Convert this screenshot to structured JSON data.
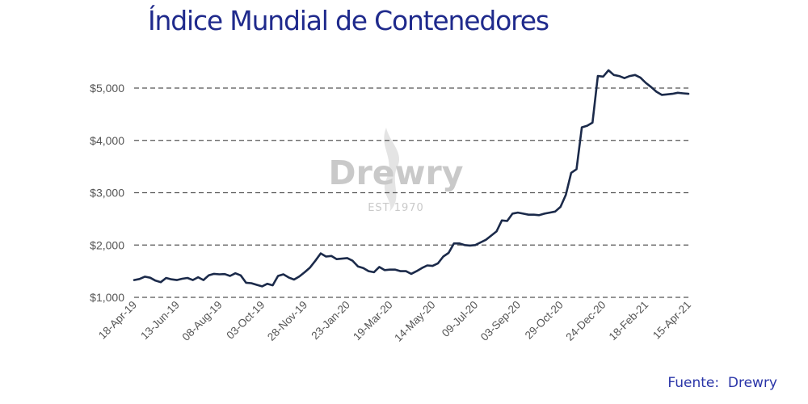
{
  "title": "Índice Mundial de Contenedores",
  "source": "Fuente:  Drewry",
  "watermark": {
    "name": "Drewry",
    "subtitle": "EST 1970"
  },
  "colors": {
    "title": "#1f2a8c",
    "line": "#1b2a4a",
    "grid": "#555555",
    "source": "#2a35a8"
  },
  "chart_data": {
    "type": "line",
    "title": "Índice Mundial de Contenedores",
    "xlabel": "",
    "ylabel": "",
    "ylim": [
      1000,
      5400
    ],
    "y_ticks": [
      1000,
      2000,
      3000,
      4000,
      5000
    ],
    "y_tick_labels": [
      "$1,000",
      "$2,000",
      "$3,000",
      "$4,000",
      "$5,000"
    ],
    "x_tick_labels": [
      "18-Apr-19",
      "13-Jun-19",
      "08-Aug-19",
      "03-Oct-19",
      "28-Nov-19",
      "23-Jan-20",
      "19-Mar-20",
      "14-May-20",
      "09-Jul-20",
      "03-Sep-20",
      "29-Oct-20",
      "24-Dec-20",
      "18-Feb-21",
      "15-Apr-21"
    ],
    "grid": "horizontal dashed",
    "series": [
      {
        "x": [
          "18-Apr-19",
          "25-Apr-19",
          "02-May-19",
          "09-May-19",
          "16-May-19",
          "23-May-19",
          "30-May-19",
          "06-Jun-19",
          "13-Jun-19",
          "20-Jun-19",
          "27-Jun-19",
          "04-Jul-19",
          "11-Jul-19",
          "18-Jul-19",
          "25-Jul-19",
          "01-Aug-19",
          "08-Aug-19",
          "15-Aug-19",
          "22-Aug-19",
          "29-Aug-19",
          "05-Sep-19",
          "12-Sep-19",
          "19-Sep-19",
          "26-Sep-19",
          "03-Oct-19",
          "10-Oct-19",
          "17-Oct-19",
          "24-Oct-19",
          "31-Oct-19",
          "07-Nov-19",
          "14-Nov-19",
          "21-Nov-19",
          "28-Nov-19",
          "05-Dec-19",
          "12-Dec-19",
          "19-Dec-19",
          "26-Dec-19",
          "02-Jan-20",
          "09-Jan-20",
          "16-Jan-20",
          "23-Jan-20",
          "30-Jan-20",
          "06-Feb-20",
          "13-Feb-20",
          "20-Feb-20",
          "27-Feb-20",
          "05-Mar-20",
          "12-Mar-20",
          "19-Mar-20",
          "26-Mar-20",
          "02-Apr-20",
          "09-Apr-20",
          "16-Apr-20",
          "23-Apr-20",
          "30-Apr-20",
          "07-May-20",
          "14-May-20",
          "21-May-20",
          "28-May-20",
          "04-Jun-20",
          "11-Jun-20",
          "18-Jun-20",
          "25-Jun-20",
          "02-Jul-20",
          "09-Jul-20",
          "16-Jul-20",
          "23-Jul-20",
          "30-Jul-20",
          "06-Aug-20",
          "13-Aug-20",
          "20-Aug-20",
          "27-Aug-20",
          "03-Sep-20",
          "10-Sep-20",
          "17-Sep-20",
          "24-Sep-20",
          "01-Oct-20",
          "08-Oct-20",
          "15-Oct-20",
          "22-Oct-20",
          "29-Oct-20",
          "05-Nov-20",
          "12-Nov-20",
          "19-Nov-20",
          "26-Nov-20",
          "03-Dec-20",
          "10-Dec-20",
          "17-Dec-20",
          "24-Dec-20",
          "31-Dec-20",
          "07-Jan-21",
          "14-Jan-21",
          "21-Jan-21",
          "28-Jan-21",
          "04-Feb-21",
          "11-Feb-21",
          "18-Feb-21",
          "25-Feb-21",
          "04-Mar-21",
          "11-Mar-21",
          "18-Mar-21",
          "25-Mar-21",
          "01-Apr-21",
          "08-Apr-21",
          "15-Apr-21"
        ],
        "values": [
          1330,
          1350,
          1395,
          1375,
          1320,
          1290,
          1370,
          1345,
          1330,
          1355,
          1370,
          1330,
          1385,
          1330,
          1420,
          1450,
          1440,
          1445,
          1410,
          1460,
          1420,
          1280,
          1270,
          1240,
          1210,
          1260,
          1230,
          1410,
          1440,
          1380,
          1340,
          1400,
          1480,
          1570,
          1700,
          1840,
          1780,
          1790,
          1730,
          1740,
          1750,
          1700,
          1590,
          1560,
          1500,
          1480,
          1580,
          1520,
          1530,
          1530,
          1500,
          1500,
          1450,
          1500,
          1560,
          1610,
          1600,
          1650,
          1780,
          1850,
          2030,
          2030,
          2000,
          1990,
          2000,
          2050,
          2100,
          2180,
          2260,
          2470,
          2460,
          2600,
          2620,
          2600,
          2580,
          2580,
          2570,
          2600,
          2620,
          2640,
          2730,
          2960,
          3380,
          3450,
          4250,
          4280,
          4340,
          5230,
          5220,
          5340,
          5250,
          5230,
          5190,
          5230,
          5250,
          5200,
          5100,
          5020,
          4930,
          4870,
          4880,
          4890,
          4910,
          4900,
          4890
        ]
      }
    ]
  }
}
